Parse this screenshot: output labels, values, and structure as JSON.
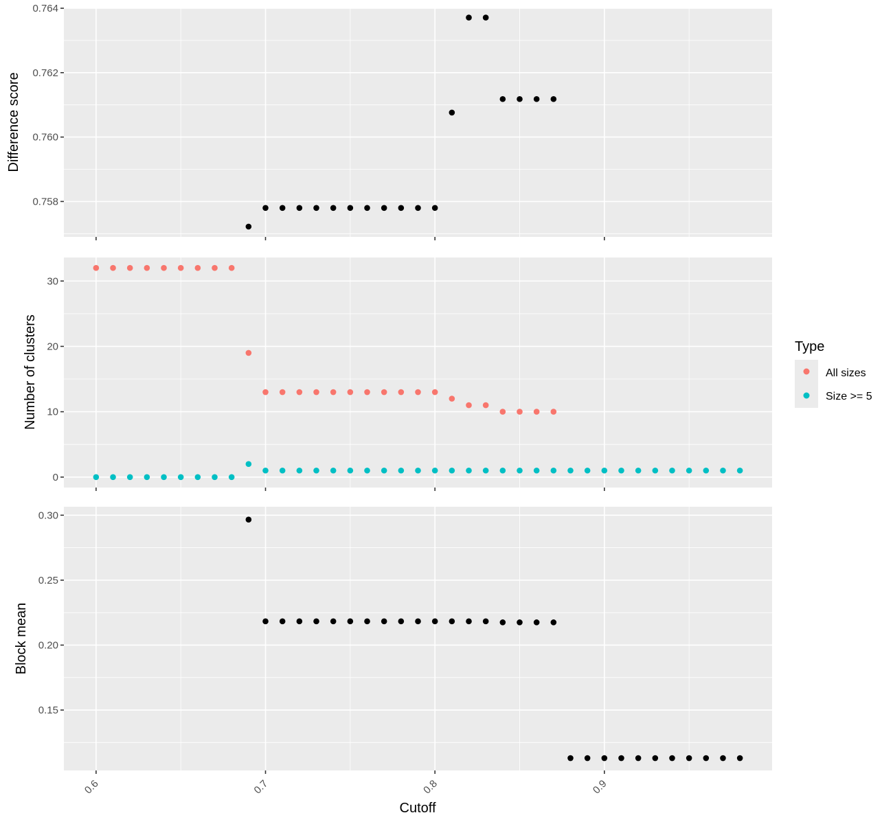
{
  "chart_data": [
    {
      "type": "scatter",
      "ylabel": "Difference score",
      "ylim": [
        0.7569,
        0.764
      ],
      "y_ticks": [
        0.758,
        0.76,
        0.762,
        0.764
      ],
      "y_tick_labels": [
        "0.758",
        "0.760",
        "0.762",
        "0.764"
      ],
      "series": [
        {
          "color": "#000000",
          "points": [
            [
              0.69,
              0.75722
            ],
            [
              0.7,
              0.7578
            ],
            [
              0.71,
              0.7578
            ],
            [
              0.72,
              0.7578
            ],
            [
              0.73,
              0.7578
            ],
            [
              0.74,
              0.7578
            ],
            [
              0.75,
              0.7578
            ],
            [
              0.76,
              0.7578
            ],
            [
              0.77,
              0.7578
            ],
            [
              0.78,
              0.7578
            ],
            [
              0.79,
              0.7578
            ],
            [
              0.8,
              0.7578
            ],
            [
              0.81,
              0.76076
            ],
            [
              0.82,
              0.76371
            ],
            [
              0.83,
              0.76371
            ],
            [
              0.84,
              0.76118
            ],
            [
              0.85,
              0.76118
            ],
            [
              0.86,
              0.76118
            ],
            [
              0.87,
              0.76118
            ]
          ]
        }
      ]
    },
    {
      "type": "scatter",
      "ylabel": "Number of clusters",
      "ylim": [
        -1.6,
        33.6
      ],
      "y_ticks": [
        0,
        10,
        20,
        30
      ],
      "y_tick_labels": [
        "0",
        "10",
        "20",
        "30"
      ],
      "series": [
        {
          "name": "All sizes",
          "color": "#f8766d",
          "points": [
            [
              0.6,
              32
            ],
            [
              0.61,
              32
            ],
            [
              0.62,
              32
            ],
            [
              0.63,
              32
            ],
            [
              0.64,
              32
            ],
            [
              0.65,
              32
            ],
            [
              0.66,
              32
            ],
            [
              0.67,
              32
            ],
            [
              0.68,
              32
            ],
            [
              0.69,
              19
            ],
            [
              0.7,
              13
            ],
            [
              0.71,
              13
            ],
            [
              0.72,
              13
            ],
            [
              0.73,
              13
            ],
            [
              0.74,
              13
            ],
            [
              0.75,
              13
            ],
            [
              0.76,
              13
            ],
            [
              0.77,
              13
            ],
            [
              0.78,
              13
            ],
            [
              0.79,
              13
            ],
            [
              0.8,
              13
            ],
            [
              0.81,
              12
            ],
            [
              0.82,
              11
            ],
            [
              0.83,
              11
            ],
            [
              0.84,
              10
            ],
            [
              0.85,
              10
            ],
            [
              0.86,
              10
            ],
            [
              0.87,
              10
            ]
          ]
        },
        {
          "name": "Size >= 5",
          "color": "#00bfc4",
          "points": [
            [
              0.6,
              0
            ],
            [
              0.61,
              0
            ],
            [
              0.62,
              0
            ],
            [
              0.63,
              0
            ],
            [
              0.64,
              0
            ],
            [
              0.65,
              0
            ],
            [
              0.66,
              0
            ],
            [
              0.67,
              0
            ],
            [
              0.68,
              0
            ],
            [
              0.69,
              2
            ],
            [
              0.7,
              1
            ],
            [
              0.71,
              1
            ],
            [
              0.72,
              1
            ],
            [
              0.73,
              1
            ],
            [
              0.74,
              1
            ],
            [
              0.75,
              1
            ],
            [
              0.76,
              1
            ],
            [
              0.77,
              1
            ],
            [
              0.78,
              1
            ],
            [
              0.79,
              1
            ],
            [
              0.8,
              1
            ],
            [
              0.81,
              1
            ],
            [
              0.82,
              1
            ],
            [
              0.83,
              1
            ],
            [
              0.84,
              1
            ],
            [
              0.85,
              1
            ],
            [
              0.86,
              1
            ],
            [
              0.87,
              1
            ],
            [
              0.88,
              1
            ],
            [
              0.89,
              1
            ],
            [
              0.9,
              1
            ],
            [
              0.91,
              1
            ],
            [
              0.92,
              1
            ],
            [
              0.93,
              1
            ],
            [
              0.94,
              1
            ],
            [
              0.95,
              1
            ],
            [
              0.96,
              1
            ],
            [
              0.97,
              1
            ],
            [
              0.98,
              1
            ]
          ]
        }
      ]
    },
    {
      "type": "scatter",
      "ylabel": "Block mean",
      "ylim": [
        0.1035,
        0.3065
      ],
      "y_ticks": [
        0.15,
        0.2,
        0.25,
        0.3
      ],
      "y_tick_labels": [
        "0.15",
        "0.20",
        "0.25",
        "0.30"
      ],
      "series": [
        {
          "color": "#000000",
          "points": [
            [
              0.69,
              0.2966
            ],
            [
              0.7,
              0.2183
            ],
            [
              0.71,
              0.2183
            ],
            [
              0.72,
              0.2183
            ],
            [
              0.73,
              0.2183
            ],
            [
              0.74,
              0.2183
            ],
            [
              0.75,
              0.2183
            ],
            [
              0.76,
              0.2183
            ],
            [
              0.77,
              0.2183
            ],
            [
              0.78,
              0.2183
            ],
            [
              0.79,
              0.2183
            ],
            [
              0.8,
              0.2183
            ],
            [
              0.81,
              0.2183
            ],
            [
              0.82,
              0.2183
            ],
            [
              0.83,
              0.2183
            ],
            [
              0.84,
              0.2175
            ],
            [
              0.85,
              0.2175
            ],
            [
              0.86,
              0.2175
            ],
            [
              0.87,
              0.2175
            ],
            [
              0.88,
              0.113
            ],
            [
              0.89,
              0.113
            ],
            [
              0.9,
              0.113
            ],
            [
              0.91,
              0.113
            ],
            [
              0.92,
              0.113
            ],
            [
              0.93,
              0.113
            ],
            [
              0.94,
              0.113
            ],
            [
              0.95,
              0.113
            ],
            [
              0.96,
              0.113
            ],
            [
              0.97,
              0.113
            ],
            [
              0.98,
              0.113
            ]
          ]
        }
      ]
    }
  ],
  "x_axis": {
    "label": "Cutoff",
    "xlim": [
      0.581,
      0.999
    ],
    "ticks": [
      0.6,
      0.7,
      0.8,
      0.9
    ],
    "tick_labels": [
      "0.6",
      "0.7",
      "0.8",
      "0.9"
    ]
  },
  "legend": {
    "title": "Type",
    "position": "right",
    "entries": [
      {
        "label": "All sizes",
        "color": "#f8766d"
      },
      {
        "label": "Size >= 5",
        "color": "#00bfc4"
      }
    ]
  }
}
